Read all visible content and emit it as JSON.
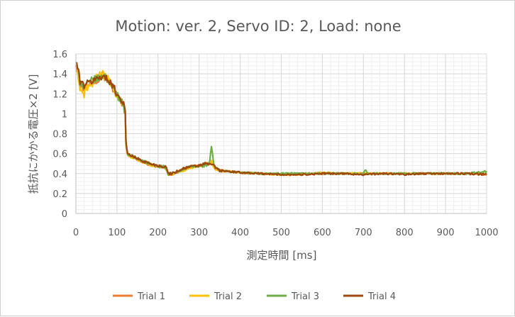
{
  "chart_data": {
    "type": "line",
    "title": "Motion: ver. 2, Servo ID: 2, Load: none",
    "xlabel": "測定時間 [ms]",
    "ylabel": "抵抗にかかる電圧×2 [V]",
    "xlim": [
      0,
      1000
    ],
    "ylim": [
      0,
      1.6
    ],
    "xticks": [
      "0",
      "100",
      "200",
      "300",
      "400",
      "500",
      "600",
      "700",
      "800",
      "900",
      "1000"
    ],
    "yticks": [
      "0",
      "0.2",
      "0.4",
      "0.6",
      "0.8",
      "1",
      "1.2",
      "1.4",
      "1.6"
    ],
    "grid": true,
    "legend_position": "bottom",
    "series": [
      {
        "name": "Trial 1",
        "color": "#ED7D31",
        "x": [
          0,
          5,
          10,
          15,
          20,
          25,
          30,
          40,
          50,
          60,
          65,
          70,
          80,
          90,
          100,
          110,
          115,
          120,
          122,
          125,
          140,
          160,
          180,
          200,
          210,
          215,
          220,
          225,
          230,
          240,
          260,
          280,
          300,
          315,
          325,
          330,
          335,
          340,
          350,
          400,
          450,
          500,
          550,
          600,
          650,
          700,
          750,
          800,
          850,
          900,
          950,
          1000
        ],
        "y": [
          1.5,
          1.42,
          1.3,
          1.28,
          1.24,
          1.3,
          1.27,
          1.32,
          1.33,
          1.38,
          1.4,
          1.36,
          1.33,
          1.25,
          1.18,
          1.12,
          1.1,
          1.0,
          0.7,
          0.59,
          0.56,
          0.52,
          0.49,
          0.47,
          0.47,
          0.46,
          0.45,
          0.4,
          0.39,
          0.4,
          0.44,
          0.47,
          0.48,
          0.5,
          0.49,
          0.52,
          0.48,
          0.45,
          0.43,
          0.41,
          0.4,
          0.39,
          0.4,
          0.4,
          0.4,
          0.4,
          0.4,
          0.4,
          0.4,
          0.4,
          0.4,
          0.39
        ]
      },
      {
        "name": "Trial 2",
        "color": "#FFC000",
        "x": [
          0,
          5,
          10,
          15,
          20,
          25,
          30,
          40,
          50,
          60,
          65,
          70,
          80,
          90,
          100,
          110,
          115,
          120,
          122,
          125,
          140,
          160,
          180,
          200,
          210,
          215,
          220,
          225,
          230,
          240,
          260,
          280,
          300,
          315,
          325,
          330,
          335,
          340,
          350,
          400,
          450,
          500,
          550,
          600,
          650,
          700,
          750,
          800,
          850,
          900,
          950,
          1000
        ],
        "y": [
          1.51,
          1.4,
          1.26,
          1.22,
          1.18,
          1.27,
          1.26,
          1.3,
          1.36,
          1.4,
          1.43,
          1.38,
          1.34,
          1.25,
          1.17,
          1.11,
          1.1,
          1.0,
          0.69,
          0.58,
          0.56,
          0.52,
          0.49,
          0.47,
          0.46,
          0.46,
          0.44,
          0.39,
          0.39,
          0.41,
          0.43,
          0.46,
          0.48,
          0.49,
          0.5,
          0.54,
          0.47,
          0.45,
          0.43,
          0.41,
          0.4,
          0.39,
          0.39,
          0.41,
          0.4,
          0.4,
          0.4,
          0.4,
          0.4,
          0.4,
          0.4,
          0.4
        ]
      },
      {
        "name": "Trial 3",
        "color": "#70AD47",
        "x": [
          0,
          5,
          10,
          15,
          20,
          25,
          30,
          40,
          50,
          60,
          65,
          70,
          80,
          90,
          100,
          110,
          115,
          120,
          122,
          125,
          140,
          160,
          180,
          200,
          210,
          215,
          220,
          225,
          230,
          240,
          260,
          280,
          300,
          315,
          325,
          330,
          335,
          340,
          350,
          400,
          450,
          500,
          550,
          600,
          650,
          700,
          705,
          710,
          750,
          800,
          850,
          900,
          950,
          1000
        ],
        "y": [
          1.5,
          1.44,
          1.32,
          1.3,
          1.26,
          1.31,
          1.3,
          1.34,
          1.35,
          1.36,
          1.39,
          1.37,
          1.33,
          1.26,
          1.2,
          1.13,
          1.1,
          1.01,
          0.7,
          0.6,
          0.57,
          0.53,
          0.5,
          0.47,
          0.47,
          0.47,
          0.45,
          0.38,
          0.4,
          0.41,
          0.44,
          0.47,
          0.47,
          0.48,
          0.5,
          0.68,
          0.5,
          0.46,
          0.43,
          0.41,
          0.4,
          0.4,
          0.4,
          0.4,
          0.4,
          0.4,
          0.44,
          0.4,
          0.4,
          0.4,
          0.4,
          0.4,
          0.4,
          0.42
        ]
      },
      {
        "name": "Trial 4",
        "color": "#9E480E",
        "x": [
          0,
          5,
          10,
          15,
          20,
          25,
          30,
          40,
          50,
          60,
          65,
          70,
          80,
          90,
          100,
          110,
          115,
          120,
          122,
          125,
          140,
          160,
          180,
          200,
          210,
          215,
          220,
          225,
          230,
          240,
          260,
          280,
          300,
          315,
          325,
          330,
          335,
          340,
          350,
          400,
          450,
          500,
          550,
          600,
          650,
          700,
          750,
          800,
          850,
          900,
          950,
          1000
        ],
        "y": [
          1.52,
          1.45,
          1.33,
          1.31,
          1.28,
          1.32,
          1.3,
          1.33,
          1.35,
          1.37,
          1.38,
          1.36,
          1.34,
          1.28,
          1.2,
          1.14,
          1.12,
          1.04,
          0.72,
          0.6,
          0.57,
          0.53,
          0.5,
          0.48,
          0.47,
          0.47,
          0.46,
          0.4,
          0.4,
          0.41,
          0.45,
          0.47,
          0.48,
          0.5,
          0.49,
          0.5,
          0.48,
          0.46,
          0.43,
          0.41,
          0.4,
          0.39,
          0.39,
          0.4,
          0.4,
          0.39,
          0.4,
          0.39,
          0.4,
          0.4,
          0.4,
          0.39
        ]
      }
    ]
  },
  "colors": {
    "text": "#595959",
    "gridMajor": "#d9d9d9",
    "gridMinor": "#efefef",
    "axis": "#bfbfbf"
  }
}
